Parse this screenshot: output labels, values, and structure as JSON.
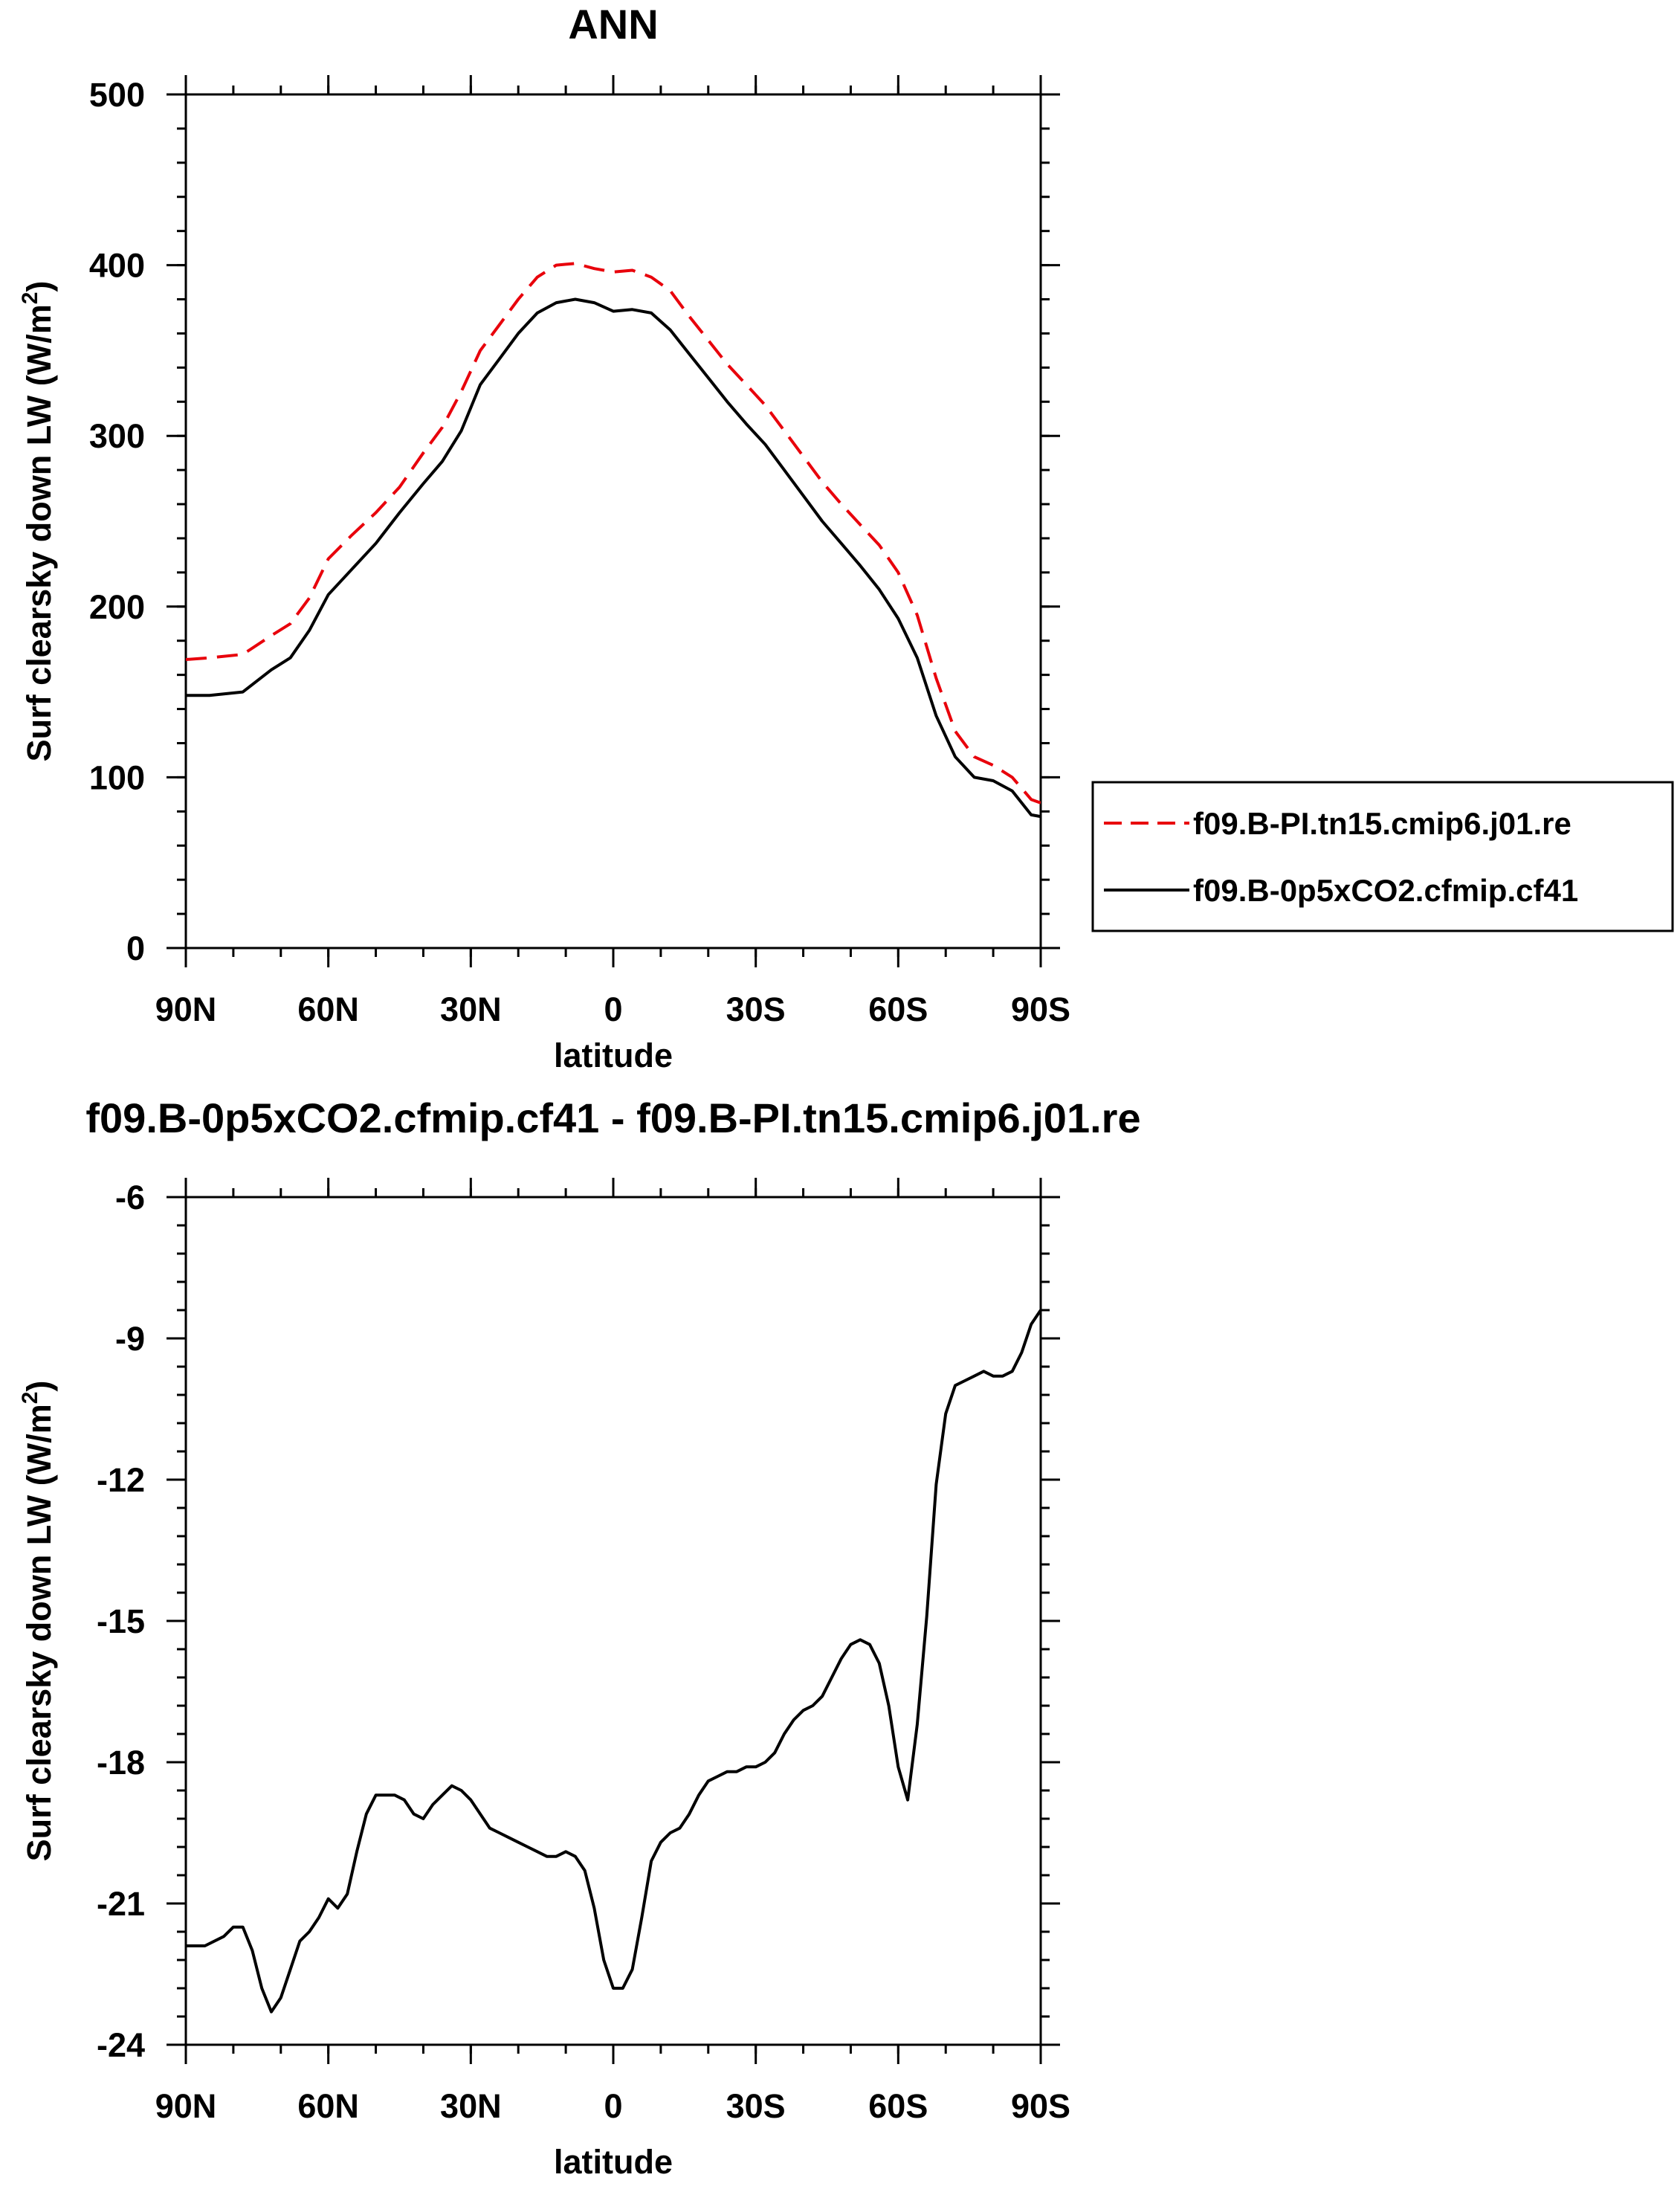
{
  "chart_data": [
    {
      "type": "line",
      "title": "ANN",
      "xlabel": "latitude",
      "ylabel": "Surf clearsky down LW (W/m",
      "ylabel_sup": "2",
      "ylabel_close": ")",
      "xlim": [
        90,
        -90
      ],
      "ylim": [
        0,
        500
      ],
      "xticks": [
        {
          "v": 90,
          "label": "90N"
        },
        {
          "v": 60,
          "label": "60N"
        },
        {
          "v": 30,
          "label": "30N"
        },
        {
          "v": 0,
          "label": "0"
        },
        {
          "v": -30,
          "label": "30S"
        },
        {
          "v": -60,
          "label": "60S"
        },
        {
          "v": -90,
          "label": "90S"
        }
      ],
      "yticks": [
        {
          "v": 0,
          "label": "0"
        },
        {
          "v": 100,
          "label": "100"
        },
        {
          "v": 200,
          "label": "200"
        },
        {
          "v": 300,
          "label": "300"
        },
        {
          "v": 400,
          "label": "400"
        },
        {
          "v": 500,
          "label": "500"
        }
      ],
      "legend_position": "right",
      "series": [
        {
          "name": "f09.B-PI.tn15.cmip6.j01.re",
          "color": "#e8000b",
          "dash": "dashed",
          "x": [
            90,
            85,
            78,
            72,
            68,
            64,
            60,
            55,
            50,
            45,
            40,
            36,
            32,
            28,
            24,
            20,
            16,
            12,
            8,
            4,
            0,
            -4,
            -8,
            -12,
            -16,
            -20,
            -24,
            -28,
            -32,
            -36,
            -40,
            -44,
            -48,
            -52,
            -56,
            -60,
            -64,
            -68,
            -72,
            -76,
            -80,
            -84,
            -88,
            -90
          ],
          "y": [
            169,
            170,
            172,
            183,
            190,
            205,
            228,
            242,
            255,
            270,
            290,
            305,
            326,
            350,
            365,
            380,
            393,
            400,
            401,
            398,
            396,
            397,
            393,
            385,
            370,
            356,
            342,
            330,
            318,
            303,
            288,
            273,
            260,
            248,
            236,
            220,
            195,
            158,
            127,
            112,
            107,
            100,
            87,
            85
          ]
        },
        {
          "name": "f09.B-0p5xCO2.cfmip.cf41",
          "color": "#000000",
          "dash": "solid",
          "x": [
            90,
            85,
            78,
            72,
            68,
            64,
            60,
            55,
            50,
            45,
            40,
            36,
            32,
            28,
            24,
            20,
            16,
            12,
            8,
            4,
            0,
            -4,
            -8,
            -12,
            -16,
            -20,
            -24,
            -28,
            -32,
            -36,
            -40,
            -44,
            -48,
            -52,
            -56,
            -60,
            -64,
            -68,
            -72,
            -76,
            -80,
            -84,
            -88,
            -90
          ],
          "y": [
            148,
            148,
            150,
            163,
            170,
            186,
            207,
            222,
            237,
            255,
            272,
            285,
            303,
            330,
            345,
            360,
            372,
            378,
            380,
            378,
            373,
            374,
            372,
            362,
            348,
            334,
            320,
            307,
            295,
            280,
            265,
            250,
            237,
            224,
            210,
            193,
            170,
            136,
            112,
            100,
            98,
            92,
            78,
            77
          ]
        }
      ]
    },
    {
      "type": "line",
      "title": "f09.B-0p5xCO2.cfmip.cf41 - f09.B-PI.tn15.cmip6.j01.re",
      "xlabel": "latitude",
      "ylabel": "Surf clearsky down LW (W/m",
      "ylabel_sup": "2",
      "ylabel_close": ")",
      "xlim": [
        90,
        -90
      ],
      "ylim": [
        -24,
        -6
      ],
      "xticks": [
        {
          "v": 90,
          "label": "90N"
        },
        {
          "v": 60,
          "label": "60N"
        },
        {
          "v": 30,
          "label": "30N"
        },
        {
          "v": 0,
          "label": "0"
        },
        {
          "v": -30,
          "label": "30S"
        },
        {
          "v": -60,
          "label": "60S"
        },
        {
          "v": -90,
          "label": "90S"
        }
      ],
      "yticks": [
        {
          "v": -24,
          "label": "-24"
        },
        {
          "v": -21,
          "label": "-21"
        },
        {
          "v": -18,
          "label": "-18"
        },
        {
          "v": -15,
          "label": "-15"
        },
        {
          "v": -12,
          "label": "-12"
        },
        {
          "v": -9,
          "label": "-9"
        },
        {
          "v": -6,
          "label": "-6"
        }
      ],
      "series": [
        {
          "name": "f09.B-0p5xCO2.cfmip.cf41 - f09.B-PI.tn15.cmip6.j01.re",
          "color": "#000000",
          "dash": "solid",
          "x": [
            90,
            86,
            82,
            80,
            78,
            76,
            74,
            72,
            70,
            68,
            66,
            64,
            62,
            60,
            58,
            56,
            54,
            52,
            50,
            48,
            46,
            44,
            42,
            40,
            38,
            36,
            34,
            32,
            30,
            28,
            26,
            24,
            22,
            20,
            18,
            16,
            14,
            12,
            10,
            8,
            6,
            4,
            2,
            0,
            -2,
            -4,
            -6,
            -8,
            -10,
            -12,
            -14,
            -16,
            -18,
            -20,
            -22,
            -24,
            -26,
            -28,
            -30,
            -32,
            -34,
            -36,
            -38,
            -40,
            -42,
            -44,
            -46,
            -48,
            -50,
            -52,
            -54,
            -56,
            -58,
            -60,
            -62,
            -64,
            -66,
            -68,
            -70,
            -72,
            -74,
            -76,
            -78,
            -80,
            -82,
            -84,
            -86,
            -88,
            -90
          ],
          "y": [
            -21.9,
            -21.9,
            -21.7,
            -21.5,
            -21.5,
            -22.0,
            -22.8,
            -23.3,
            -23.0,
            -22.4,
            -21.8,
            -21.6,
            -21.3,
            -20.9,
            -21.1,
            -20.8,
            -19.9,
            -19.1,
            -18.7,
            -18.7,
            -18.7,
            -18.8,
            -19.1,
            -19.2,
            -18.9,
            -18.7,
            -18.5,
            -18.6,
            -18.8,
            -19.1,
            -19.4,
            -19.5,
            -19.6,
            -19.7,
            -19.8,
            -19.9,
            -20.0,
            -20.0,
            -19.9,
            -20.0,
            -20.3,
            -21.1,
            -22.2,
            -22.8,
            -22.8,
            -22.4,
            -21.3,
            -20.1,
            -19.7,
            -19.5,
            -19.4,
            -19.1,
            -18.7,
            -18.4,
            -18.3,
            -18.2,
            -18.2,
            -18.1,
            -18.1,
            -18.0,
            -17.8,
            -17.4,
            -17.1,
            -16.9,
            -16.8,
            -16.6,
            -16.2,
            -15.8,
            -15.5,
            -15.4,
            -15.5,
            -15.9,
            -16.8,
            -18.1,
            -18.8,
            -17.2,
            -14.9,
            -12.1,
            -10.6,
            -10.0,
            -9.9,
            -9.8,
            -9.7,
            -9.8,
            -9.8,
            -9.7,
            -9.3,
            -8.7,
            -8.4
          ]
        }
      ]
    }
  ]
}
